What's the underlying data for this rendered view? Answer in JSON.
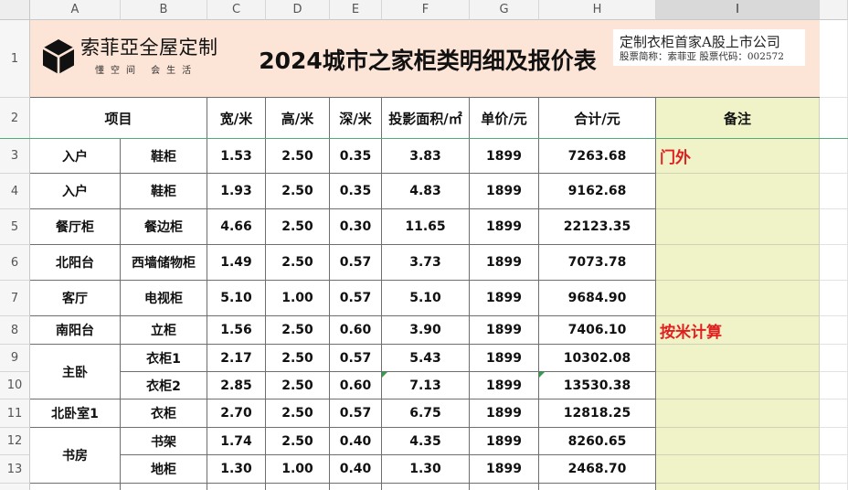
{
  "sheet": {
    "columns": [
      {
        "letter": "A"
      },
      {
        "letter": "B"
      },
      {
        "letter": "C"
      },
      {
        "letter": "D"
      },
      {
        "letter": "E"
      },
      {
        "letter": "F"
      },
      {
        "letter": "G"
      },
      {
        "letter": "H"
      },
      {
        "letter": "I",
        "selected": true
      }
    ],
    "row_numbers": [
      "1",
      "2",
      "3",
      "4",
      "5",
      "6",
      "7",
      "8",
      "9",
      "10",
      "11",
      "12",
      "13"
    ]
  },
  "banner": {
    "logo_icon": "cube-logo-icon",
    "brand_name": "索菲亞全屋定制",
    "slogan": "懂空间 会生活",
    "title": "2024城市之家柜类明细及报价表",
    "company_claim": "定制衣柜首家A股上市公司",
    "stock_info": "股票简称：索菲亚  股票代码：002572"
  },
  "header": {
    "item": "项目",
    "width": "宽/米",
    "height": "高/米",
    "depth": "深/米",
    "area": "投影面积/㎡",
    "unit_price": "单价/元",
    "total": "合计/元",
    "remark": "备注"
  },
  "groups": [
    {
      "room": "入户",
      "items": [
        {
          "name": "鞋柜",
          "width": "1.53",
          "height": "2.50",
          "depth": "0.35",
          "area": "3.83",
          "unit_price": "1899",
          "total": "7263.68",
          "remark": "门外"
        }
      ]
    },
    {
      "room": "入户",
      "items": [
        {
          "name": "鞋柜",
          "width": "1.93",
          "height": "2.50",
          "depth": "0.35",
          "area": "4.83",
          "unit_price": "1899",
          "total": "9162.68"
        }
      ]
    },
    {
      "room": "餐厅柜",
      "items": [
        {
          "name": "餐边柜",
          "width": "4.66",
          "height": "2.50",
          "depth": "0.30",
          "area": "11.65",
          "unit_price": "1899",
          "total": "22123.35"
        }
      ]
    },
    {
      "room": "北阳台",
      "items": [
        {
          "name": "西墙储物柜",
          "width": "1.49",
          "height": "2.50",
          "depth": "0.57",
          "area": "3.73",
          "unit_price": "1899",
          "total": "7073.78"
        }
      ]
    },
    {
      "room": "客厅",
      "items": [
        {
          "name": "电视柜",
          "width": "5.10",
          "height": "1.00",
          "depth": "0.57",
          "area": "5.10",
          "unit_price": "1899",
          "total": "9684.90"
        }
      ]
    },
    {
      "room": "南阳台",
      "items": [
        {
          "name": "立柜",
          "width": "1.56",
          "height": "2.50",
          "depth": "0.60",
          "area": "3.90",
          "unit_price": "1899",
          "total": "7406.10",
          "remark": "按米计算"
        }
      ]
    },
    {
      "room": "主卧",
      "items": [
        {
          "name": "衣柜1",
          "width": "2.17",
          "height": "2.50",
          "depth": "0.57",
          "area": "5.43",
          "unit_price": "1899",
          "total": "10302.08"
        },
        {
          "name": "衣柜2",
          "width": "2.85",
          "height": "2.50",
          "depth": "0.60",
          "area": "7.13",
          "unit_price": "1899",
          "total": "13530.38",
          "area_indicator": "error-triangle-icon",
          "total_indicator": "error-triangle-icon"
        }
      ]
    },
    {
      "room": "北卧室1",
      "items": [
        {
          "name": "衣柜",
          "width": "2.70",
          "height": "2.50",
          "depth": "0.57",
          "area": "6.75",
          "unit_price": "1899",
          "total": "12818.25"
        }
      ]
    },
    {
      "room": "书房",
      "items": [
        {
          "name": "书架",
          "width": "1.74",
          "height": "2.50",
          "depth": "0.40",
          "area": "4.35",
          "unit_price": "1899",
          "total": "8260.65"
        },
        {
          "name": "地柜",
          "width": "1.30",
          "height": "1.00",
          "depth": "0.40",
          "area": "1.30",
          "unit_price": "1899",
          "total": "2468.70"
        }
      ]
    }
  ],
  "colors": {
    "banner_bg": "#fce4d6",
    "remark_column_bg": "#eff3c7",
    "remark_text": "#e02020",
    "freeze_line": "#4fae78",
    "indicator": "#2e9e4f",
    "selected_column_header": "#d9d9d9"
  }
}
